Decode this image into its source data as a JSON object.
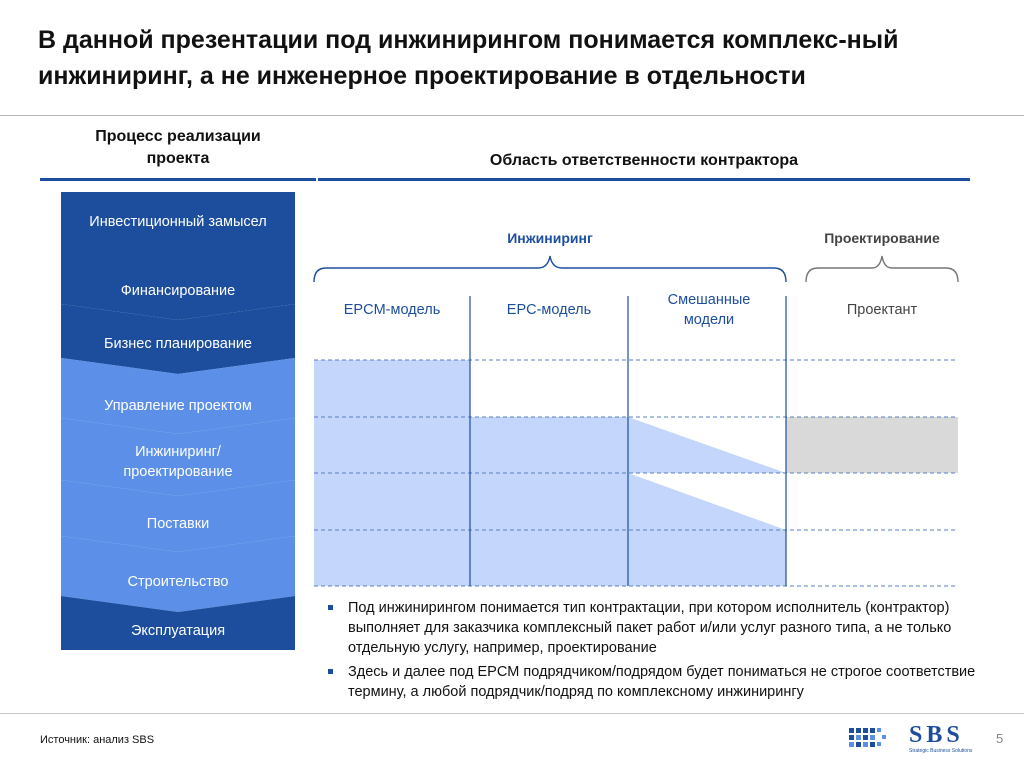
{
  "slide": {
    "title": "В данной презентации под инжинирингом понимается комплекс-ный инжиниринг, а не инженерное проектирование в отдельности",
    "page_number": "5",
    "source": "Источник: анализ SBS"
  },
  "left_column": {
    "heading_line1": "Процесс реализации",
    "heading_line2": "проекта",
    "stages": [
      {
        "label": "Инвестиционный замысел",
        "color": "#1d4e9e"
      },
      {
        "label": "Финансирование",
        "color": "#1d4e9e"
      },
      {
        "label": "Бизнес планирование",
        "color": "#1d4e9e"
      },
      {
        "label": "Управление проектом",
        "color": "#5b8fe8"
      },
      {
        "label_line1": "Инжиниринг/",
        "label_line2": "проектирование",
        "color": "#5b8fe8"
      },
      {
        "label": "Поставки",
        "color": "#5b8fe8"
      },
      {
        "label": "Строительство",
        "color": "#5b8fe8"
      },
      {
        "label": "Эксплуатация",
        "color": "#1d4e9e"
      }
    ]
  },
  "right_column": {
    "heading": "Область ответственности контрактора",
    "engineering_label": "Инжиниринг",
    "design_label": "Проектирование",
    "models": [
      {
        "label": "EPCM-модель"
      },
      {
        "label": "EPC-модель"
      },
      {
        "label_line1": "Смешанные",
        "label_line2": "модели"
      },
      {
        "label": "Проектант"
      }
    ]
  },
  "colors": {
    "dark_blue": "#1d4e9e",
    "mid_blue": "#5b8fe8",
    "light_blue": "#c4d6fb",
    "grey_fill": "#d9d9d9",
    "dashed_line": "#5a7fc0"
  },
  "bullets": [
    "Под инжинирингом понимается тип контрактации, при котором исполнитель (контрактор) выполняет для заказчика комплексный пакет работ и/или услуг разного типа, а не только отдельную услугу, например, проектирование",
    "Здесь и далее под EPCM подрядчиком/подрядом будет пониматься не строгое соответствие термину, а любой подрядчик/подряд по комплексному инжинирингу"
  ],
  "logo": {
    "text": "SBS",
    "tagline": "Strategic Business Solutions"
  }
}
